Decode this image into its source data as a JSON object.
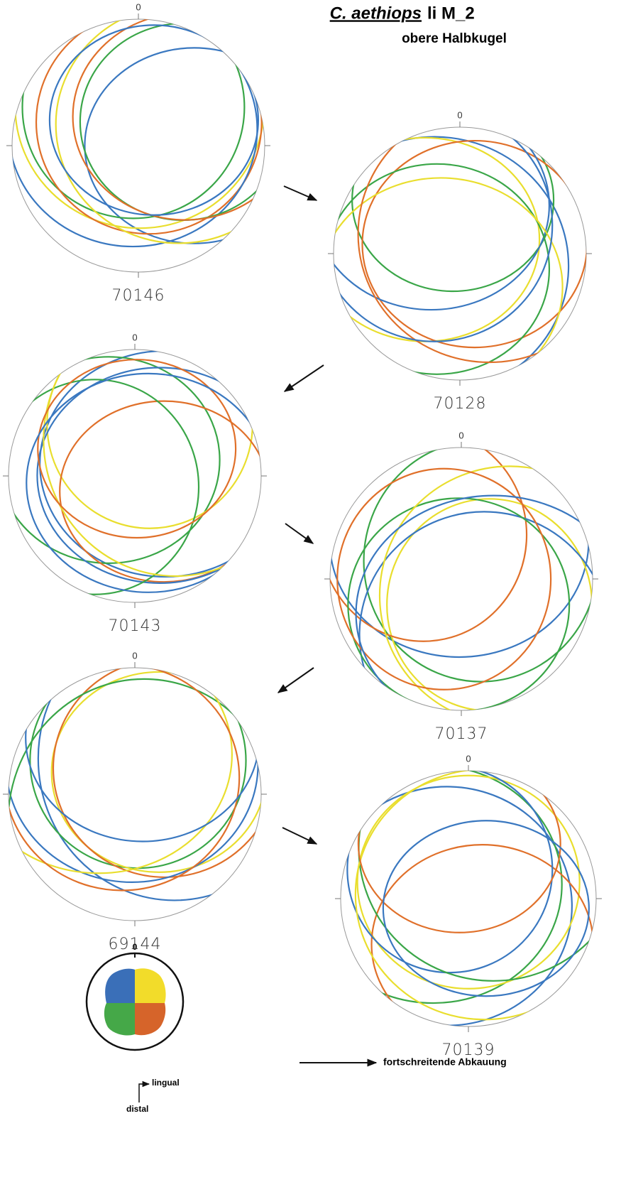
{
  "title": {
    "species": "C. aethiops",
    "tooth": "li M_2",
    "subtitle": "obere Halbkugel"
  },
  "stereonets": [
    {
      "north": "0",
      "specimen": "70146"
    },
    {
      "north": "0",
      "specimen": "70128"
    },
    {
      "north": "0",
      "specimen": "70143"
    },
    {
      "north": "0",
      "specimen": "70137"
    },
    {
      "north": "0",
      "specimen": "69144"
    },
    {
      "north": "0",
      "specimen": "70139"
    }
  ],
  "orientation": {
    "north": "0",
    "lingual": "lingual",
    "distal": "distal"
  },
  "legend": {
    "label": "fortschreitende Abkauung"
  }
}
